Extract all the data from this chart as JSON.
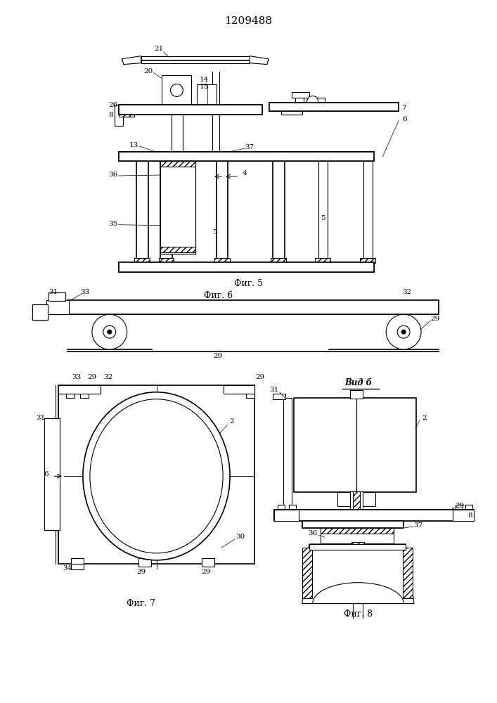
{
  "title": "1209488",
  "bg_color": "#ffffff",
  "line_color": "#000000",
  "fig5_label": "Фиг. 5",
  "fig6_label": "Фиг. 6",
  "fig7_label": "Фиг. 7",
  "fig8_label": "Фиг. 8",
  "vidb_label": "Вид б"
}
